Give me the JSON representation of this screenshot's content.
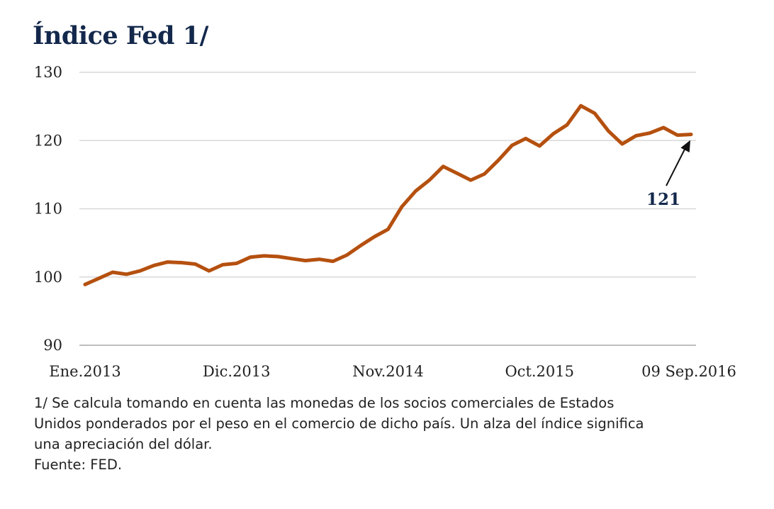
{
  "colors": {
    "title": "#13284b",
    "line": "#b5500f",
    "grid": "#d9d9d9",
    "callout": "#13284b"
  },
  "chart_data": {
    "type": "line",
    "title": "Índice Fed 1/",
    "xlabel": "",
    "ylabel": "",
    "ylim": [
      90,
      130
    ],
    "yticks": [
      90,
      100,
      110,
      120,
      130
    ],
    "grid": true,
    "x_tick_labels": [
      "Ene.2013",
      "Dic.2013",
      "Nov.2014",
      "Oct.2015",
      "09 Sep.2016"
    ],
    "x_tick_positions": [
      0,
      11,
      22,
      33,
      44
    ],
    "series": [
      {
        "values": [
          98.9,
          99.8,
          100.7,
          100.4,
          100.9,
          101.7,
          102.2,
          102.1,
          101.9,
          100.9,
          101.8,
          102.0,
          102.9,
          103.1,
          103.0,
          102.7,
          102.4,
          102.6,
          102.3,
          103.2,
          104.6,
          105.9,
          107.0,
          110.3,
          112.6,
          114.2,
          116.2,
          115.2,
          114.2,
          115.1,
          117.1,
          119.3,
          120.3,
          119.2,
          121.0,
          122.3,
          125.1,
          124.0,
          121.4,
          119.5,
          120.7,
          121.1,
          121.9,
          120.8,
          120.9
        ]
      }
    ],
    "annotations": [
      {
        "label": "121",
        "x": 44,
        "y": 121
      }
    ]
  },
  "footnotes": [
    "1/  Se calcula tomando en cuenta las monedas de los socios comerciales de Estados",
    "Unidos ponderados por el peso en el comercio de dicho país. Un alza del índice significa",
    "una apreciación del dólar.",
    "Fuente: FED."
  ]
}
